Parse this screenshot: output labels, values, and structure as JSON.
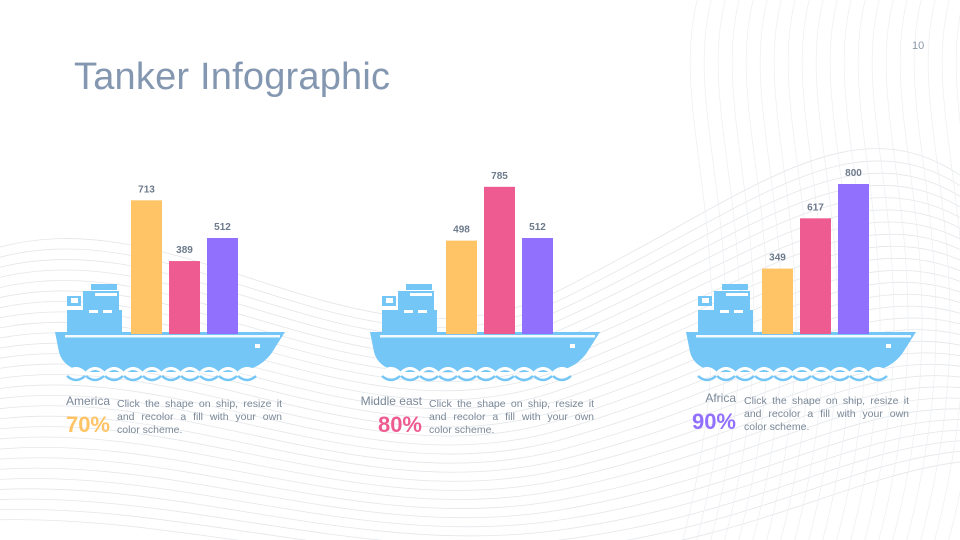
{
  "slide": {
    "title": "Tanker Infographic",
    "page_number": "10"
  },
  "colors": {
    "ship": "#74c6f7",
    "bar1": "#fec466",
    "bar2": "#ee5b90",
    "bar3": "#9170fd",
    "title": "#8497b0",
    "text": "#7a8898"
  },
  "panels": [
    {
      "region": "America",
      "percent": "70%",
      "percent_color": "#fec466",
      "description": "Click the shape on ship, resize it and recolor a fill with your own color scheme."
    },
    {
      "region": "Middle east",
      "percent": "80%",
      "percent_color": "#ee5b90",
      "description": "Click the shape on ship, resize it and recolor a fill with your own color scheme."
    },
    {
      "region": "Africa",
      "percent": "90%",
      "percent_color": "#9170fd",
      "description": "Click the shape on ship, resize it and recolor a fill with your own color scheme."
    }
  ],
  "chart_data": [
    {
      "type": "bar",
      "categories": [
        "",
        "",
        ""
      ],
      "values": [
        713,
        389,
        512
      ],
      "title": "",
      "xlabel": "",
      "ylabel": "",
      "ylim": [
        0,
        800
      ]
    },
    {
      "type": "bar",
      "categories": [
        "",
        "",
        ""
      ],
      "values": [
        498,
        785,
        512
      ],
      "title": "",
      "xlabel": "",
      "ylabel": "",
      "ylim": [
        0,
        800
      ]
    },
    {
      "type": "bar",
      "categories": [
        "",
        "",
        ""
      ],
      "values": [
        349,
        617,
        800
      ],
      "title": "",
      "xlabel": "",
      "ylabel": "",
      "ylim": [
        0,
        800
      ]
    }
  ]
}
